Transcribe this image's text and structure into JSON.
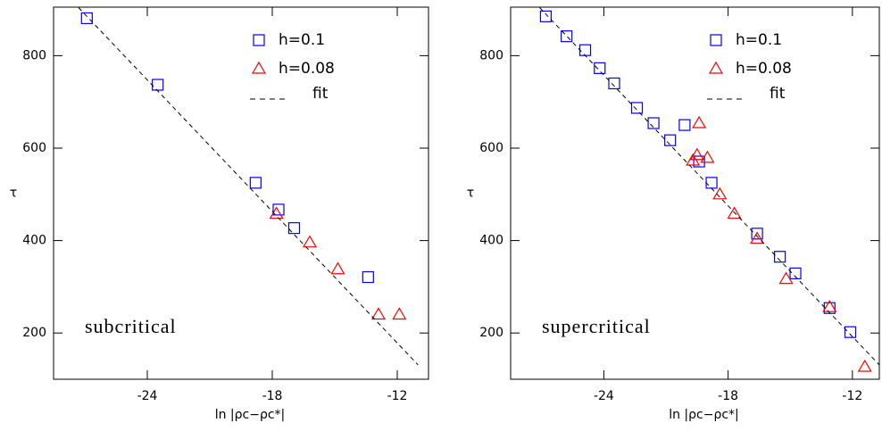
{
  "chart_data": [
    {
      "type": "scatter",
      "xlabel": "ln |ρc−ρc*|",
      "ylabel": "τ",
      "annotation": "subcritical",
      "xlim": [
        -28.5,
        -10.5
      ],
      "ylim": [
        100,
        905
      ],
      "xticks": [
        -24,
        -18,
        -12
      ],
      "yticks": [
        200,
        400,
        600,
        800
      ],
      "series": [
        {
          "name": "h=0.1",
          "color": "#0000ff",
          "marker": "square",
          "x": [
            -26.9,
            -23.5,
            -18.8,
            -17.7,
            -16.95,
            -13.4
          ],
          "values": [
            881,
            737,
            525,
            467,
            427,
            321
          ]
        },
        {
          "name": "h=0.08",
          "color": "#ff0000",
          "marker": "triangle",
          "x": [
            -17.8,
            -16.2,
            -14.85,
            -12.9,
            -11.9
          ],
          "values": [
            458,
            396,
            338,
            240,
            240
          ]
        },
        {
          "name": "fit",
          "color": "#000000",
          "marker": "dashed-line",
          "x": [
            -27.3,
            -11.0
          ],
          "values": [
            904,
            131
          ]
        }
      ]
    },
    {
      "type": "scatter",
      "xlabel": "ln |ρc−ρc*|",
      "ylabel": "τ",
      "annotation": "supercritical",
      "xlim": [
        -28.5,
        -10.7
      ],
      "ylim": [
        100,
        905
      ],
      "xticks": [
        -24,
        -18,
        -12
      ],
      "yticks": [
        200,
        400,
        600,
        800
      ],
      "series": [
        {
          "name": "h=0.1",
          "color": "#0000ff",
          "marker": "square",
          "x": [
            -26.8,
            -25.8,
            -24.9,
            -24.2,
            -23.5,
            -22.4,
            -21.6,
            -20.8,
            -20.1,
            -19.4,
            -18.8,
            -16.6,
            -15.5,
            -14.75,
            -13.1,
            -12.1
          ],
          "values": [
            885,
            842,
            812,
            773,
            740,
            687,
            654,
            617,
            650,
            571,
            525,
            415,
            365,
            329,
            254,
            202
          ]
        },
        {
          "name": "h=0.08",
          "color": "#ff0000",
          "marker": "triangle",
          "x": [
            -19.4,
            -19.5,
            -19.7,
            -19.0,
            -18.4,
            -17.7,
            -16.6,
            -15.2,
            -13.1,
            -11.4
          ],
          "values": [
            654,
            585,
            573,
            579,
            500,
            458,
            404,
            317,
            256,
            127
          ]
        },
        {
          "name": "fit",
          "color": "#000000",
          "marker": "dashed-line",
          "x": [
            -27.1,
            -10.7
          ],
          "values": [
            904,
            131
          ]
        }
      ]
    }
  ]
}
